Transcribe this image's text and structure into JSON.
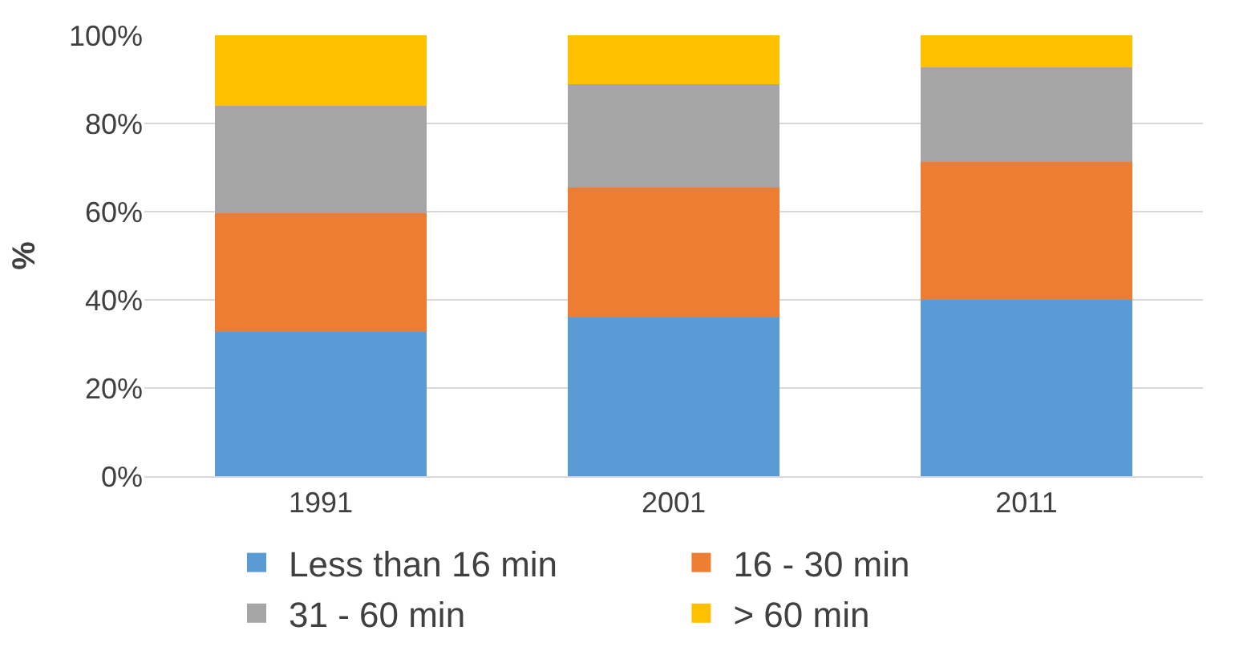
{
  "chart_data": {
    "type": "bar",
    "stacked": true,
    "ylabel": "%",
    "categories": [
      "1991",
      "2001",
      "2011"
    ],
    "series": [
      {
        "name": "Less than 16 min",
        "color": "#5b9bd5",
        "values": [
          32.7,
          36,
          40
        ]
      },
      {
        "name": "16 - 30 min",
        "color": "#ed7d31",
        "values": [
          27,
          29.5,
          31.3
        ]
      },
      {
        "name": "31 - 60 min",
        "color": "#a5a5a5",
        "values": [
          24.3,
          23.5,
          21.4
        ]
      },
      {
        "name": "> 60 min",
        "color": "#ffc000",
        "values": [
          16,
          11,
          7.3
        ]
      }
    ],
    "ylim": [
      0,
      100
    ],
    "yticks": [
      {
        "value": 0,
        "label": "0%"
      },
      {
        "value": 20,
        "label": "20%"
      },
      {
        "value": 40,
        "label": "40%"
      },
      {
        "value": 60,
        "label": "60%"
      },
      {
        "value": 80,
        "label": "80%"
      },
      {
        "value": 100,
        "label": "100%"
      }
    ],
    "grid": "y",
    "legend": "bottom"
  }
}
